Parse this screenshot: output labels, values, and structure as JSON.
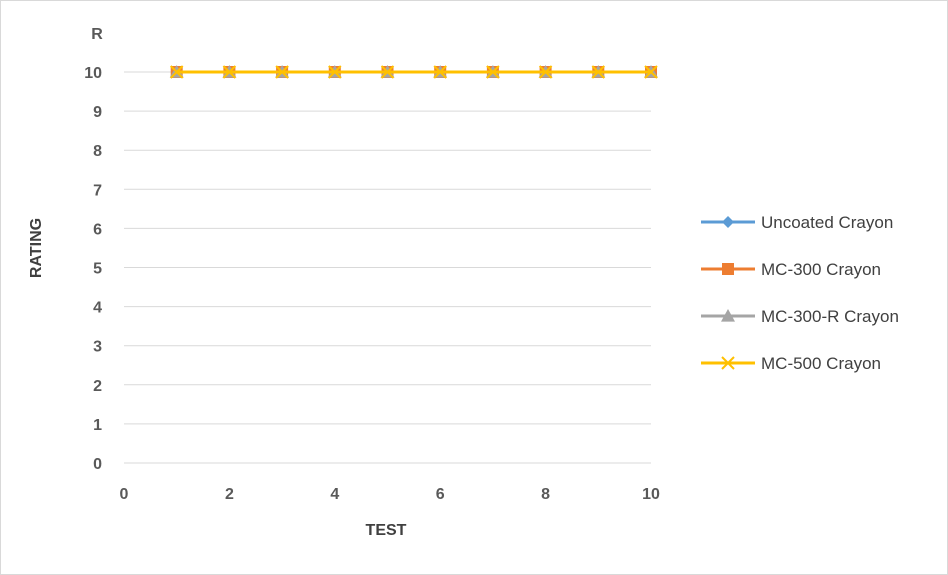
{
  "chart_data": {
    "type": "line",
    "xlabel": "TEST",
    "ylabel": "RATING",
    "extra_label": "R",
    "xlim": [
      0,
      10
    ],
    "ylim": [
      0,
      10
    ],
    "x_ticks": [
      0,
      2,
      4,
      6,
      8,
      10
    ],
    "y_ticks": [
      0,
      1,
      2,
      3,
      4,
      5,
      6,
      7,
      8,
      9,
      10
    ],
    "grid": "horizontal",
    "legend_position": "right",
    "x": [
      1,
      2,
      3,
      4,
      5,
      6,
      7,
      8,
      9,
      10
    ],
    "series": [
      {
        "name": "Uncoated Crayon",
        "marker": "diamond",
        "color": "#5B9BD5",
        "values": [
          10,
          10,
          10,
          10,
          10,
          10,
          10,
          10,
          10,
          10
        ]
      },
      {
        "name": "MC-300 Crayon",
        "marker": "square",
        "color": "#ED7D31",
        "values": [
          10,
          10,
          10,
          10,
          10,
          10,
          10,
          10,
          10,
          10
        ]
      },
      {
        "name": "MC-300-R Crayon",
        "marker": "triangle",
        "color": "#A5A5A5",
        "values": [
          10,
          10,
          10,
          10,
          10,
          10,
          10,
          10,
          10,
          10
        ]
      },
      {
        "name": "MC-500 Crayon",
        "marker": "x",
        "color": "#FFC000",
        "values": [
          10,
          10,
          10,
          10,
          10,
          10,
          10,
          10,
          10,
          10
        ]
      }
    ]
  }
}
